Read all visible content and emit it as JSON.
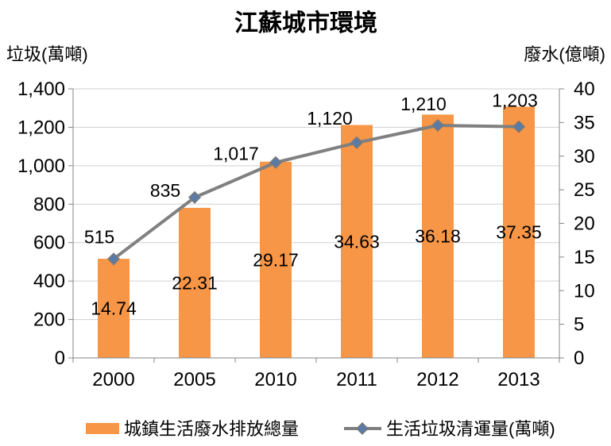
{
  "chart_data": {
    "type": "bar",
    "title": "江蘇城市環境",
    "categories": [
      "2000",
      "2005",
      "2010",
      "2011",
      "2012",
      "2013"
    ],
    "series": [
      {
        "name": "城鎮生活廢水排放總量",
        "type": "bar",
        "axis": "right",
        "values": [
          14.74,
          22.31,
          29.17,
          34.63,
          36.18,
          37.35
        ],
        "labels": [
          "14.74",
          "22.31",
          "29.17",
          "34.63",
          "36.18",
          "37.35"
        ],
        "color": "#F79646"
      },
      {
        "name": "生活垃圾清運量(萬噸)",
        "type": "line",
        "axis": "left",
        "marker": "diamond",
        "values": [
          515,
          835,
          1017,
          1120,
          1210,
          1203
        ],
        "labels": [
          "515",
          "835",
          "1,017",
          "1,120",
          "1,210",
          "1,203"
        ],
        "color": "#808080",
        "marker_color": "#5A7BA6"
      }
    ],
    "ylabel": "垃圾(萬噸)",
    "ylim": [
      0,
      1400
    ],
    "yticks": [
      "0",
      "200",
      "400",
      "600",
      "800",
      "1,000",
      "1,200",
      "1,400"
    ],
    "y2label": "廢水(億噸)",
    "y2lim": [
      0,
      40
    ],
    "y2ticks": [
      "0",
      "5",
      "10",
      "15",
      "20",
      "25",
      "30",
      "35",
      "40"
    ],
    "grid": true,
    "legend_position": "bottom"
  }
}
